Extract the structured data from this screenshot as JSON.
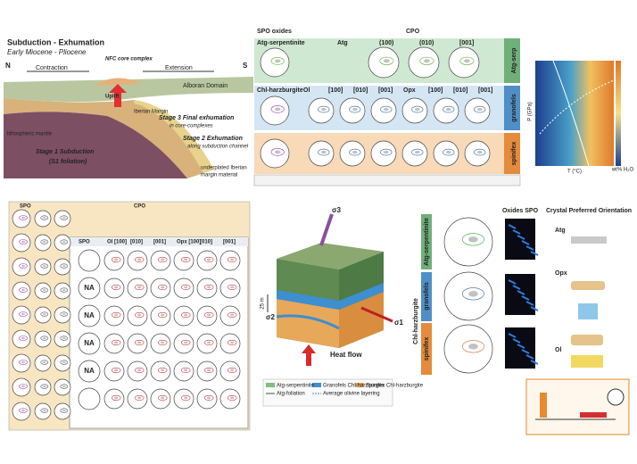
{
  "subduction": {
    "title": "Subduction - Exhumation",
    "subtitle": "Early Miocene - Pliocene",
    "left": "N",
    "right": "S",
    "contraction": "Contraction",
    "extension": "Extension",
    "nfc": "NFC core complex",
    "alboran": "Alboran Domain",
    "uplift": "Uplift",
    "iberian": "Iberian Margin",
    "mantle": "lithospheric mantle",
    "stage3": "Stage 3 Final exhumation",
    "stage3b": "in core-complexes",
    "stage2": "Stage 2 Exhumation",
    "stage2b": "along subduction channel",
    "stage1": "Stage 1 Subduction",
    "stage1b": "(S1 foliation)",
    "underplated": "underplated Iberian",
    "underplated2": "margin material"
  },
  "cpo_table": {
    "spo": "SPO oxides",
    "cpo": "CPO",
    "row1": {
      "label": "Atg-serpentinite",
      "side": "Atg-serp",
      "headers": [
        "Atg",
        "(100)",
        "(010)",
        "[001]"
      ]
    },
    "row2": {
      "label": "Chl-harzburgite",
      "side": "granofels",
      "headers": [
        "Ol",
        "[100]",
        "[010]",
        "[001]",
        "Opx",
        "[100]",
        "[010]",
        "[001]"
      ]
    },
    "row3": {
      "side": "spinifex"
    }
  },
  "pt_diagram": {
    "y_label": "P (GPa)",
    "x_label": "T (°C)",
    "colorbar": "wt% H₂O"
  },
  "spo_cpo_table": {
    "spo": "SPO",
    "cpo": "CPO",
    "headers": [
      "Ol [100]",
      "[010]",
      "[001]",
      "Opx [100]",
      "[010]",
      "[001]"
    ],
    "inner_spo": "SPO",
    "na": [
      "NA",
      "NA",
      "NA",
      "NA"
    ]
  },
  "block_diagram": {
    "heat_flow": "Heat flow",
    "scale": "25 m",
    "sigma1": "σ1",
    "sigma2": "σ2",
    "sigma3": "σ3",
    "side_atg": "Atg-serpentinite",
    "side_gran": "granofels",
    "side_spin": "spinifex",
    "side_harz": "Chl-harzburgite",
    "legend": [
      "Atg-serpentinite",
      "Granofels Chl-harzburgite",
      "Spinifex Chl-harzburgite",
      "Atg-foliation",
      "Average olivine layering"
    ]
  },
  "orientation": {
    "oxides": "Oxides SPO",
    "cpo": "Crystal Preferred Orientation",
    "atg": "Atg",
    "opx": "Opx",
    "ol": "Ol"
  }
}
